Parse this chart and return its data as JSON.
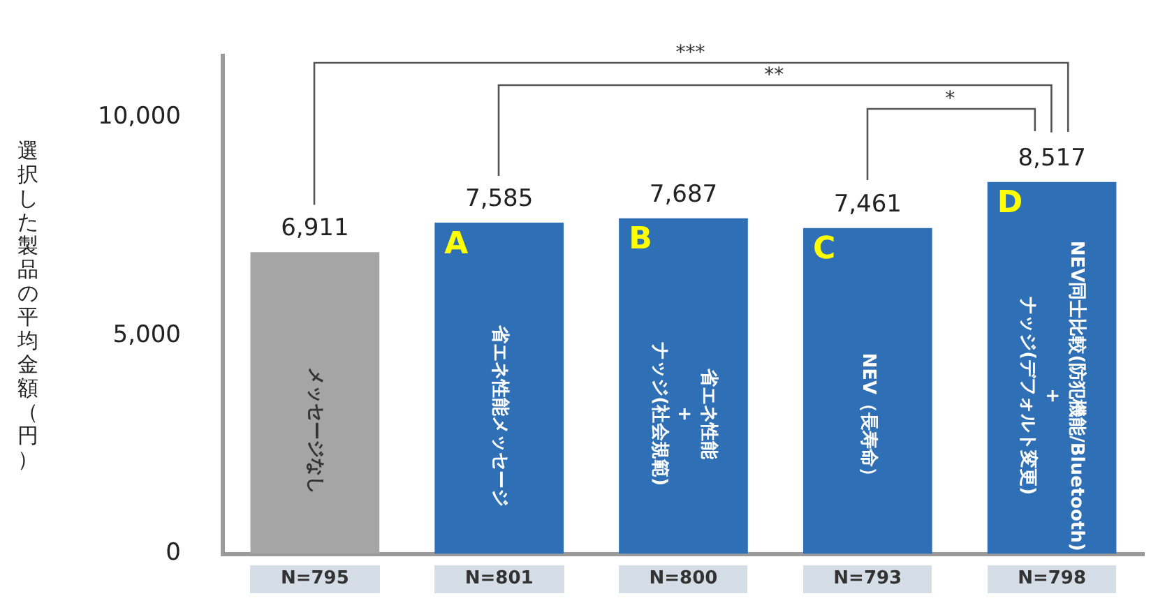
{
  "chart_data": {
    "type": "bar",
    "ylabel": "選択した製品の平均金額（円）",
    "categories": [
      "メッセージなし",
      "省エネ性能メッセージ",
      "省エネ性能\n+\nナッジ(社会規範)",
      "NEV（長寿命）",
      "NEV同士比較(防犯機能/Bluetooth)\n+\nナッジ(デフォルト変更)"
    ],
    "values": [
      6911,
      7585,
      7687,
      7461,
      8517
    ],
    "colors": [
      "#a5a5a5",
      "#2f6fb5",
      "#2f6fb5",
      "#2f6fb5",
      "#2f6fb5"
    ],
    "value_labels": [
      "6,911",
      "7,585",
      "7,687",
      "7,461",
      "8,517"
    ],
    "ylim": [
      0,
      11400
    ],
    "yticks": [
      {
        "value": 0,
        "label": "0"
      },
      {
        "value": 5000,
        "label": "5,000"
      },
      {
        "value": 10000,
        "label": "10,000"
      }
    ],
    "grid": false,
    "legend": false,
    "annotations": [
      "***",
      "**",
      "*",
      {
        "text": "A",
        "x": "省エネ性能メッセージ",
        "y": 7585
      },
      {
        "text": "B",
        "x": "省エネ性能\n+\nナッジ(社会規範)",
        "y": 7687
      },
      {
        "text": "C",
        "x": "NEV（長寿命）",
        "y": 7461
      },
      {
        "text": "D",
        "x": "NEV同士比較(防犯機能/Bluetooth)\n+\nナッジ(デフォルト変更)",
        "y": 8517
      },
      {
        "text": "N=795",
        "x": "メッセージなし",
        "y": 0
      },
      {
        "text": "N=801",
        "x": "省エネ性能メッセージ",
        "y": 0
      },
      {
        "text": "N=800",
        "x": "省エネ性能\n+\nナッジ(社会規範)",
        "y": 0
      },
      {
        "text": "N=793",
        "x": "NEV（長寿命）",
        "y": 0
      },
      {
        "text": "N=798",
        "x": "NEV同士比較(防犯機能/Bluetooth)\n+\nナッジ(デフォルト変更)",
        "y": 0
      }
    ]
  }
}
